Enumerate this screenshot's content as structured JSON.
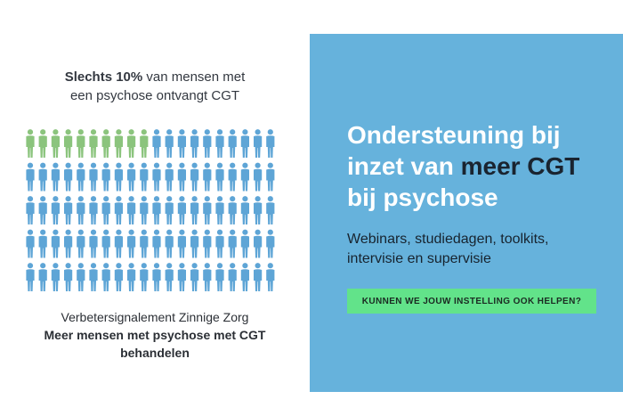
{
  "left": {
    "headline_bold": "Slechts 10%",
    "headline_rest_line1": " van mensen met",
    "headline_line2": "een psychose ontvangt CGT",
    "figures": {
      "total": 100,
      "highlighted": 10,
      "highlight_color": "#8bc47d",
      "base_color": "#5ea5d6"
    },
    "caption_line1": "Verbetersignalement Zinnige Zorg",
    "caption_line2": "Meer mensen met psychose met CGT",
    "caption_line3": "behandelen"
  },
  "panel": {
    "title_line1": "Ondersteuning bij",
    "title_line2_pre": "inzet van ",
    "title_line2_accent": "meer CGT",
    "title_line3": "bij psychose",
    "subtitle_line1": "Webinars, studiedagen, toolkits,",
    "subtitle_line2": "intervisie en supervisie",
    "cta_label": "KUNNEN WE JOUW INSTELLING OOK HELPEN?",
    "background_color": "#66b2dc",
    "cta_color": "#62e38a"
  }
}
